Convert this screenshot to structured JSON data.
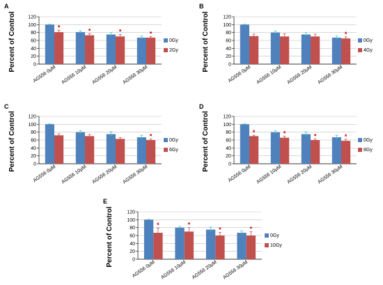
{
  "chart_data": [
    {
      "type": "bar",
      "panel": "A",
      "categories": [
        "AG556 0µM",
        "AG556 10µM",
        "AG556 20µM",
        "AG556 30µM"
      ],
      "ylabel": "Percent of Control",
      "ylim": [
        0,
        120
      ],
      "yticks": [
        0,
        20,
        40,
        60,
        80,
        100,
        120
      ],
      "grid": true,
      "legend_position": "right",
      "series": [
        {
          "name": "0Gy",
          "color": "#4f81bd",
          "values": [
            100,
            81,
            75,
            67
          ],
          "errors": [
            1,
            3,
            5,
            4
          ]
        },
        {
          "name": "2Gy",
          "color": "#c0504d",
          "values": [
            81,
            73,
            70,
            67
          ],
          "errors": [
            5,
            4,
            5,
            3
          ]
        }
      ],
      "annotations": [
        "*",
        "*",
        "*",
        "*"
      ]
    },
    {
      "type": "bar",
      "panel": "B",
      "categories": [
        "AG556 0µM",
        "AG556 10µM",
        "AG556 20µM",
        "AG556 30µM"
      ],
      "ylabel": "Percent of Control",
      "ylim": [
        0,
        120
      ],
      "yticks": [
        0,
        20,
        40,
        60,
        80,
        100,
        120
      ],
      "grid": true,
      "legend_position": "right",
      "series": [
        {
          "name": "0Gy",
          "color": "#4f81bd",
          "values": [
            100,
            80,
            75,
            67
          ],
          "errors": [
            1,
            4,
            5,
            4
          ]
        },
        {
          "name": "4Gy",
          "color": "#c0504d",
          "values": [
            71,
            70,
            70,
            65
          ],
          "errors": [
            5,
            7,
            6,
            4
          ]
        }
      ],
      "annotations": [
        "",
        "",
        "",
        "*"
      ]
    },
    {
      "type": "bar",
      "panel": "C",
      "categories": [
        "AG556 0µM",
        "AG556 10µM",
        "AG556 20µM",
        "AG556 30µM"
      ],
      "ylabel": "Percent of Control",
      "ylim": [
        0,
        120
      ],
      "yticks": [
        0,
        20,
        40,
        60,
        80,
        100,
        120
      ],
      "grid": true,
      "legend_position": "right",
      "series": [
        {
          "name": "0Gy",
          "color": "#4f81bd",
          "values": [
            100,
            80,
            75,
            67
          ],
          "errors": [
            1,
            4,
            6,
            5
          ]
        },
        {
          "name": "6Gy",
          "color": "#c0504d",
          "values": [
            72,
            70,
            63,
            60
          ],
          "errors": [
            4,
            4,
            3,
            3
          ]
        }
      ],
      "annotations": [
        "",
        "",
        "",
        "*"
      ]
    },
    {
      "type": "bar",
      "panel": "D",
      "categories": [
        "AG556 0µM",
        "AG556 10µM",
        "AG556 20µM",
        "AG556 30µM"
      ],
      "ylabel": "Percent of Control",
      "ylim": [
        0,
        120
      ],
      "yticks": [
        0,
        20,
        40,
        60,
        80,
        100,
        120
      ],
      "grid": true,
      "legend_position": "right",
      "series": [
        {
          "name": "0Gy",
          "color": "#4f81bd",
          "values": [
            100,
            80,
            75,
            67
          ],
          "errors": [
            1,
            4,
            6,
            5
          ]
        },
        {
          "name": "8Gy",
          "color": "#c0504d",
          "values": [
            70,
            66,
            60,
            58
          ],
          "errors": [
            2,
            4,
            3,
            4
          ]
        }
      ],
      "annotations": [
        "*",
        "*",
        "*",
        "*"
      ]
    },
    {
      "type": "bar",
      "panel": "E",
      "categories": [
        "AG556 0µM",
        "AG556 10µM",
        "AG556 20µM",
        "AG556 30µM"
      ],
      "ylabel": "Percent of Control",
      "ylim": [
        0,
        120
      ],
      "yticks": [
        0,
        20,
        40,
        60,
        80,
        100,
        120
      ],
      "grid": true,
      "legend_position": "right",
      "series": [
        {
          "name": "0Gy",
          "color": "#4f81bd",
          "values": [
            100,
            80,
            75,
            67
          ],
          "errors": [
            1,
            3,
            6,
            5
          ]
        },
        {
          "name": "10Gy",
          "color": "#c0504d",
          "values": [
            67,
            70,
            60,
            60
          ],
          "errors": [
            12,
            10,
            8,
            10
          ]
        }
      ],
      "annotations": [
        "*",
        "*",
        "*",
        "*"
      ]
    }
  ]
}
